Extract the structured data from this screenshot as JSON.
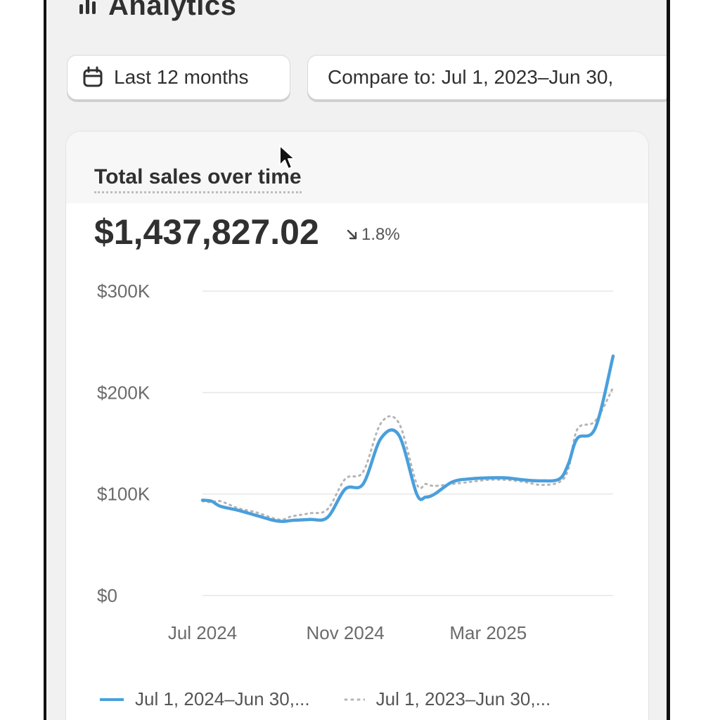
{
  "page": {
    "title": "Analytics",
    "title_icon": "bar-chart-icon"
  },
  "filters": {
    "date_range_icon": "calendar-icon",
    "date_range_label": "Last 12 months",
    "compare_label": "Compare to: Jul 1, 2023–Jun 30,"
  },
  "card": {
    "title": "Total sales over time",
    "total_value": "$1,437,827.02",
    "change_value": "1.8%",
    "change_direction": "down",
    "change_icon": "arrow-down-right-icon"
  },
  "colors": {
    "primary_series": "#4a9fdc",
    "comparison_series": "#b5b5b5",
    "gridline": "#e6e6e6"
  },
  "chart_data": {
    "type": "line",
    "title": "Total sales over time",
    "x_tick_labels": [
      "Jul 2024",
      "Nov 2024",
      "Mar 2025"
    ],
    "y_tick_labels": [
      "$0",
      "$100K",
      "$200K",
      "$300K"
    ],
    "ylim": [
      0,
      300000
    ],
    "y_ticks": [
      0,
      100000,
      200000,
      300000
    ],
    "x_ticks_index": [
      0,
      2,
      4
    ],
    "grid": true,
    "legend_position": "bottom",
    "x": [
      0,
      0.125,
      0.25,
      0.5,
      0.75,
      1,
      1.125,
      1.25,
      1.5,
      1.75,
      2,
      2.25,
      2.5,
      2.75,
      3,
      3.125,
      3.25,
      3.5,
      3.75,
      4,
      4.25,
      4.5,
      4.75,
      5,
      5.125,
      5.25,
      5.5,
      5.75
    ],
    "series": [
      {
        "name": "Jul 1, 2024–Jun 30,...",
        "style": "solid",
        "values": [
          94000,
          93000,
          88000,
          84000,
          79000,
          74000,
          73000,
          74000,
          75000,
          77000,
          105000,
          110000,
          155000,
          158000,
          100000,
          97000,
          100000,
          112000,
          115000,
          116000,
          116000,
          114000,
          113000,
          115000,
          130000,
          155000,
          165000,
          236000
        ]
      },
      {
        "name": "Jul 1, 2023–Jun 30,...",
        "style": "dotted",
        "values": [
          93000,
          92000,
          93000,
          86000,
          82000,
          76000,
          75000,
          78000,
          81000,
          85000,
          115000,
          122000,
          170000,
          170000,
          110000,
          110000,
          108000,
          110000,
          112000,
          114000,
          114000,
          112000,
          109000,
          112000,
          125000,
          164000,
          172000,
          205000
        ]
      }
    ]
  },
  "legend": {
    "primary_label": "Jul 1, 2024–Jun 30,...",
    "comparison_label": "Jul 1, 2023–Jun 30,..."
  },
  "pointer": {
    "icon": "mouse-pointer-icon"
  }
}
